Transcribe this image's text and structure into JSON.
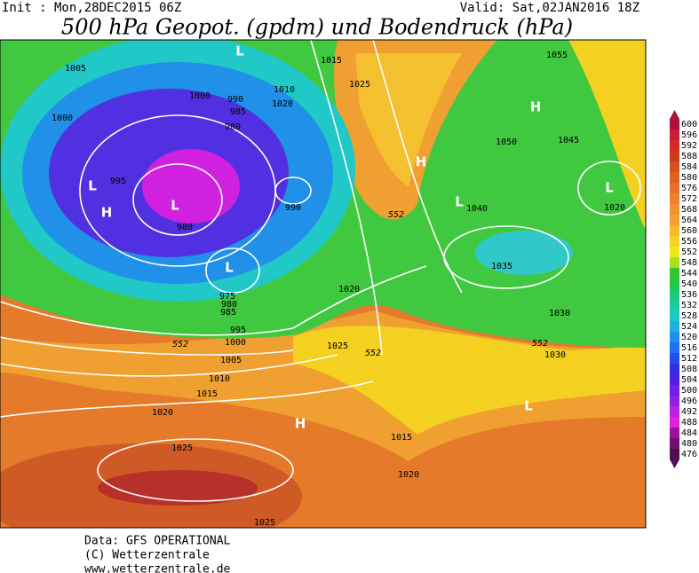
{
  "header": {
    "init": "Init : Mon,28DEC2015 06Z",
    "valid": "Valid: Sat,02JAN2016 18Z",
    "title": "500 hPa Geopot. (gpdm) und Bodendruck (hPa)"
  },
  "colorbar": {
    "labels": [
      600,
      596,
      592,
      588,
      584,
      580,
      576,
      572,
      568,
      564,
      560,
      556,
      552,
      548,
      544,
      540,
      536,
      532,
      528,
      524,
      520,
      516,
      512,
      508,
      504,
      500,
      496,
      492,
      488,
      484,
      480,
      476
    ],
    "colors": [
      "#b0103a",
      "#c41e3a",
      "#d42a2a",
      "#c83c1e",
      "#d4501e",
      "#e06020",
      "#e87028",
      "#ee8030",
      "#f09030",
      "#f4a030",
      "#f8b830",
      "#f8d020",
      "#f0e81a",
      "#a8e020",
      "#30c830",
      "#20c850",
      "#20c878",
      "#20c8a0",
      "#20c8c8",
      "#20b0e0",
      "#2090f0",
      "#2070f0",
      "#2050e8",
      "#3030e0",
      "#5020e0",
      "#7020e0",
      "#9020e0",
      "#c020e0",
      "#e020e0",
      "#a0109a",
      "#701070",
      "#501050"
    ]
  },
  "map": {
    "isobar_labels": [
      1005,
      1000,
      1000,
      990,
      985,
      980,
      995,
      980,
      975,
      980,
      985,
      995,
      1000,
      1005,
      1010,
      1015,
      1020,
      1025,
      1025,
      1015,
      1010,
      1020,
      1025,
      990,
      1055,
      1050,
      1045,
      1040,
      1020,
      1035,
      1030,
      1030,
      1020,
      1025,
      1015,
      1020,
      552,
      552,
      552,
      552
    ],
    "pressure_centers": [
      "L",
      "H",
      "L",
      "L",
      "L",
      "H",
      "L",
      "H",
      "L",
      "H",
      "L"
    ]
  },
  "footer": {
    "data": "Data: GFS OPERATIONAL",
    "copyright": "(C) Wetterzentrale",
    "url": "www.wetterzentrale.de"
  }
}
